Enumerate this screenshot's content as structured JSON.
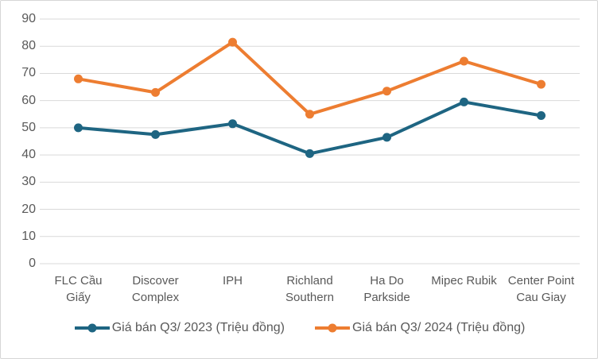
{
  "chart_data": {
    "type": "line",
    "categories": [
      "FLC Cầu Giấy",
      "Discover Complex",
      "IPH",
      "Richland Southern",
      "Ha Do Parkside",
      "Mipec Rubik",
      "Center Point Cau Giay"
    ],
    "series": [
      {
        "name": "Giá bán Q3/ 2023 (Triệu đồng)",
        "color": "#1E6582",
        "values": [
          50,
          47.5,
          51.5,
          40.5,
          46.5,
          59.5,
          54.5
        ]
      },
      {
        "name": "Giá bán Q3/ 2024 (Triệu đồng)",
        "color": "#ED7D31",
        "values": [
          68,
          63,
          81.5,
          55,
          63.5,
          74.5,
          66
        ]
      }
    ],
    "title": "",
    "xlabel": "",
    "ylabel": "",
    "ylim": [
      0,
      90
    ],
    "ytick_step": 10,
    "yticks": [
      0,
      10,
      20,
      30,
      40,
      50,
      60,
      70,
      80,
      90
    ],
    "grid": true,
    "legend_position": "bottom",
    "marker": "circle"
  },
  "colors": {
    "background": "#FFFFFF",
    "border": "#D6D6D6",
    "gridline": "#D9D9D9",
    "axis_text": "#595959",
    "series_2023": "#1E6582",
    "series_2024": "#ED7D31"
  }
}
